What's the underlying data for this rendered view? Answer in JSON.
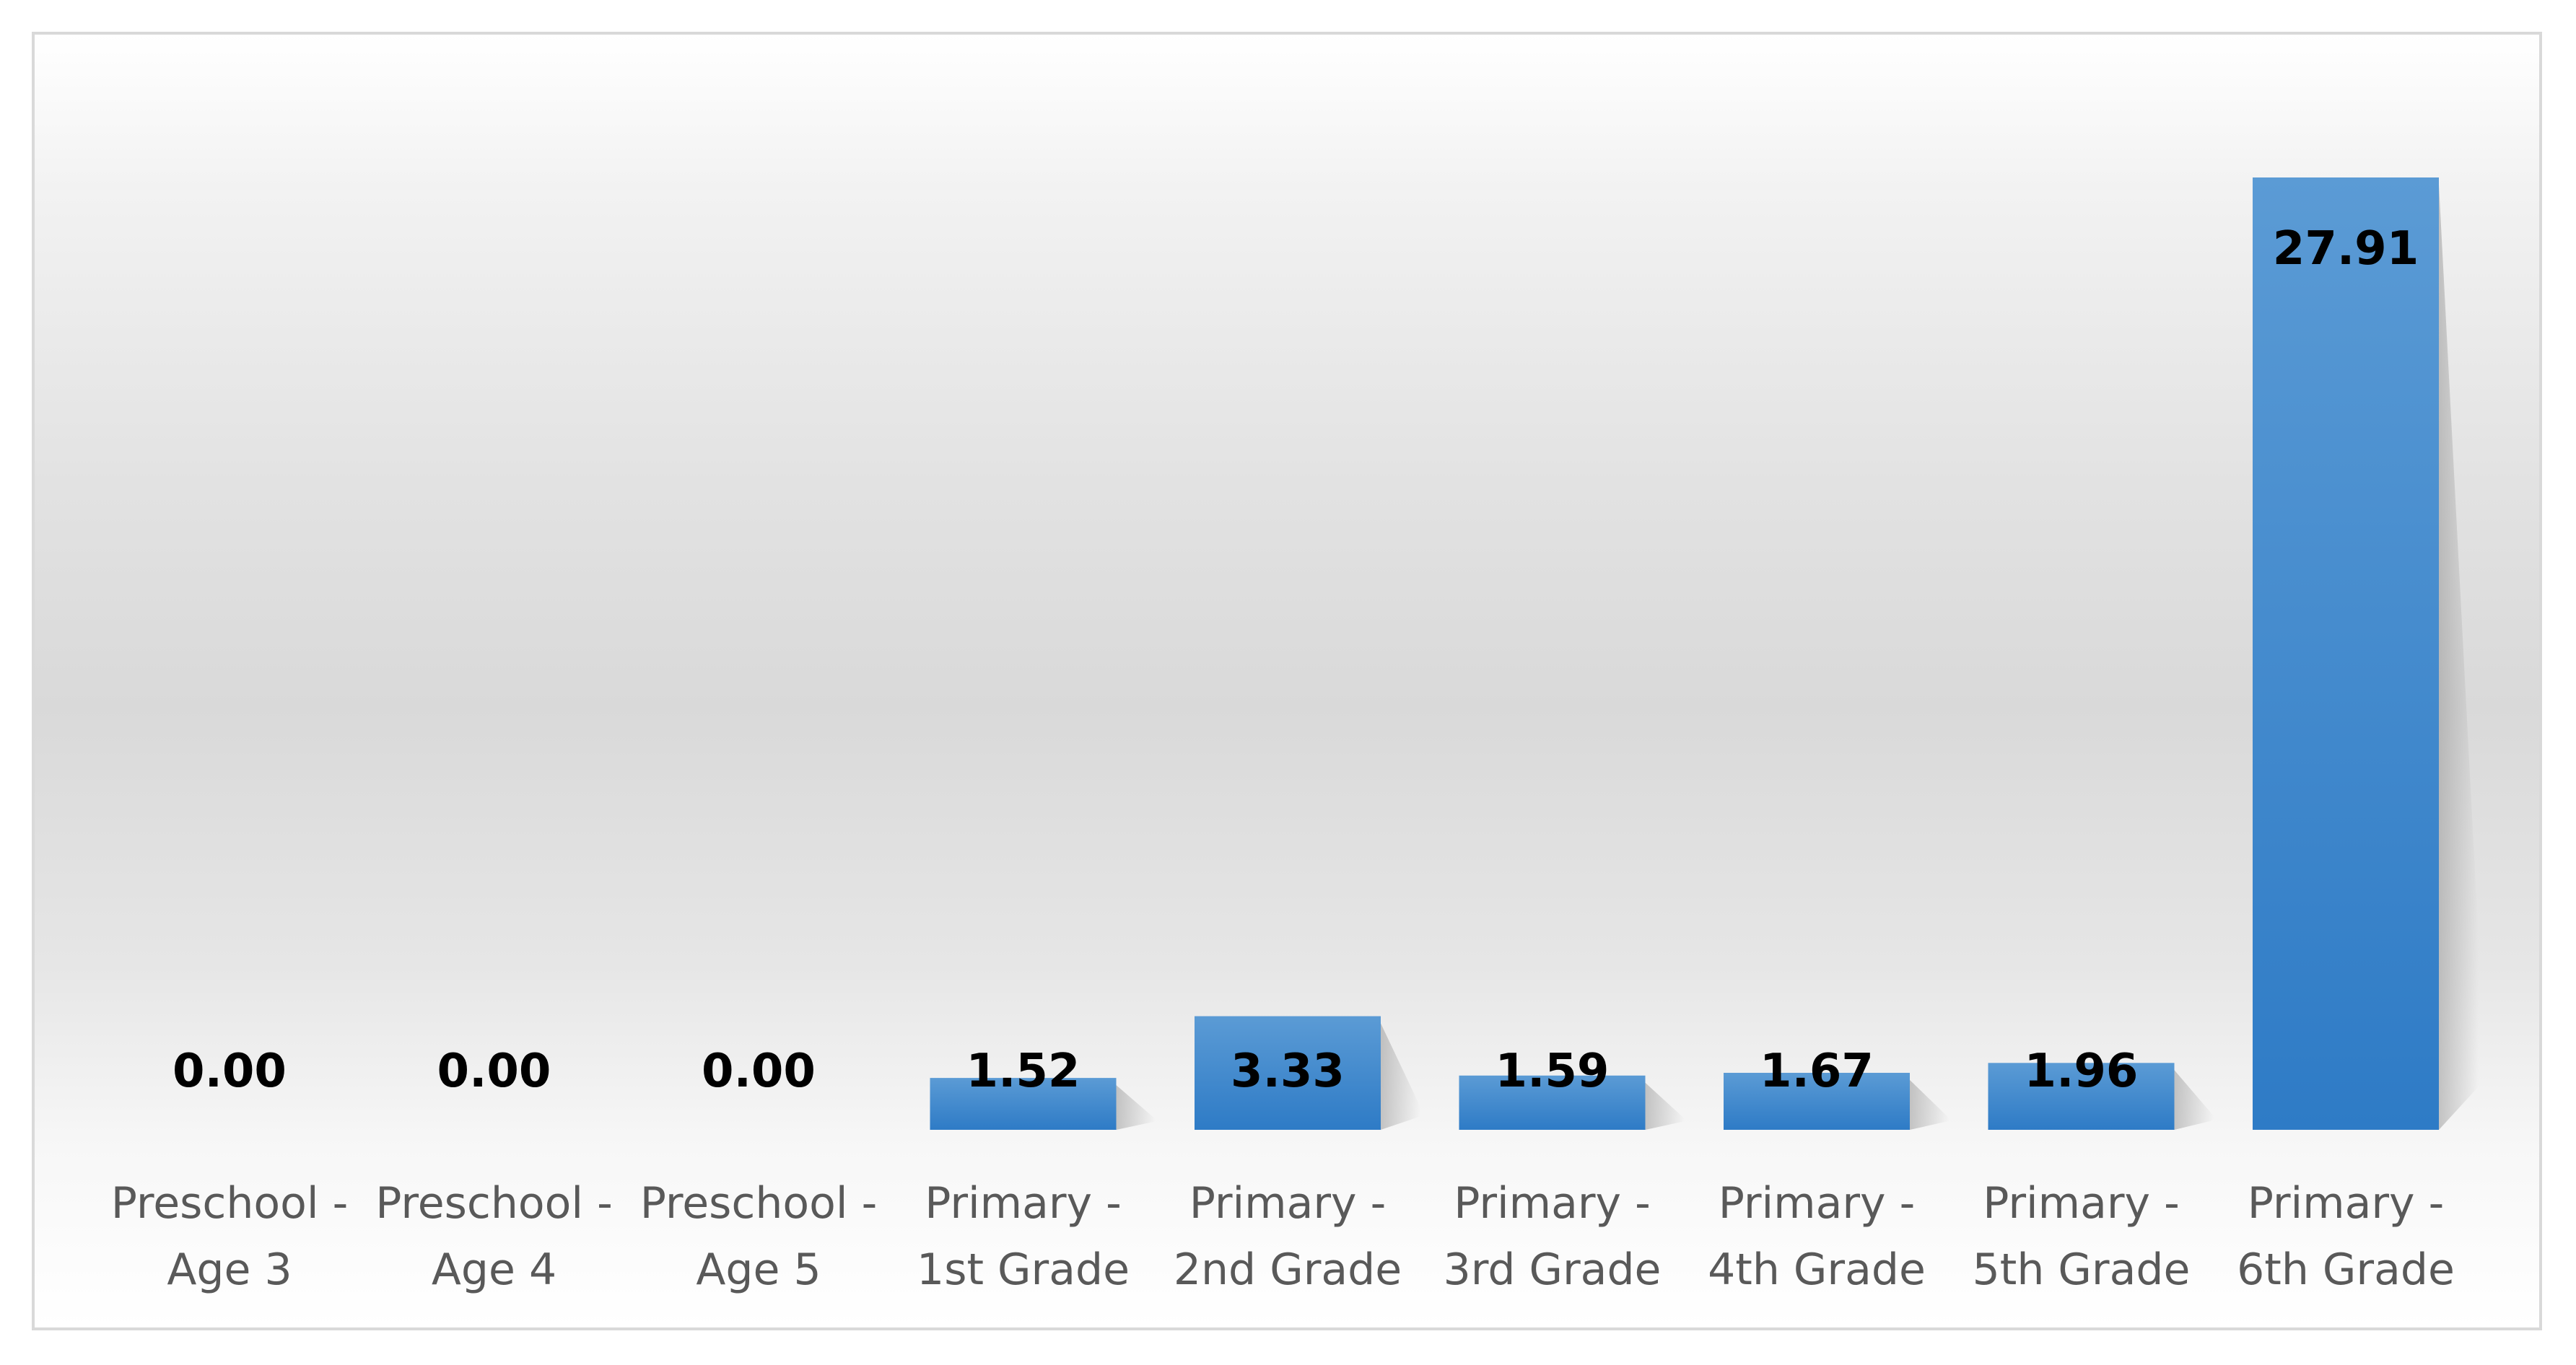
{
  "chart_data": {
    "type": "bar",
    "title": "",
    "xlabel": "",
    "ylabel": "",
    "categories": [
      "Preschool - Age 3",
      "Preschool - Age 4",
      "Preschool - Age 5",
      "Primary - 1st Grade",
      "Primary - 2nd Grade",
      "Primary - 3rd Grade",
      "Primary - 4th Grade",
      "Primary - 5th Grade",
      "Primary - 6th Grade"
    ],
    "category_lines": [
      [
        "Preschool -",
        "Age 3"
      ],
      [
        "Preschool -",
        "Age 4"
      ],
      [
        "Preschool -",
        "Age 5"
      ],
      [
        "Primary -",
        "1st Grade"
      ],
      [
        "Primary -",
        "2nd Grade"
      ],
      [
        "Primary -",
        "3rd Grade"
      ],
      [
        "Primary -",
        "4th Grade"
      ],
      [
        "Primary -",
        "5th Grade"
      ],
      [
        "Primary -",
        "6th Grade"
      ]
    ],
    "values": [
      0.0,
      0.0,
      0.0,
      1.52,
      3.33,
      1.59,
      1.67,
      1.96,
      27.91
    ],
    "value_labels": [
      "0.00",
      "0.00",
      "0.00",
      "1.52",
      "3.33",
      "1.59",
      "1.67",
      "1.96",
      "27.91"
    ],
    "ylim": [
      0,
      30
    ],
    "grid": false,
    "legend": "none",
    "colors": {
      "bar_top": "#5b9bd5",
      "bar_bottom": "#2e7bc6",
      "label": "#000000",
      "tick": "#595959",
      "frame": "#d9d9d9"
    }
  }
}
